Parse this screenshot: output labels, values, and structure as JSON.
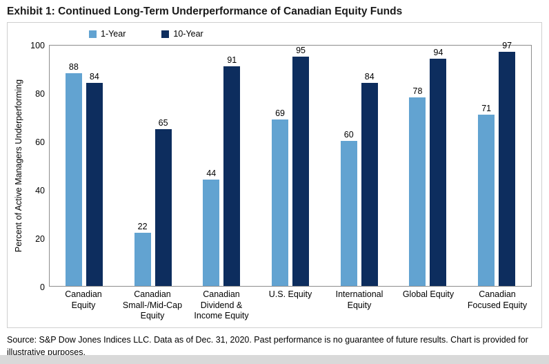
{
  "title": "Exhibit 1: Continued Long-Term Underperformance of Canadian Equity Funds",
  "source": "Source: S&P Dow Jones Indices LLC. Data as of Dec. 31, 2020. Past performance is no guarantee of future results. Chart is provided for illustrative purposes.",
  "chart_data": {
    "type": "bar",
    "title": "Exhibit 1: Continued Long-Term Underperformance of Canadian Equity Funds",
    "xlabel": "",
    "ylabel": "Percent of Active Managers Underperforming",
    "ylim": [
      0,
      100
    ],
    "yticks": [
      0,
      20,
      40,
      60,
      80,
      100
    ],
    "grid": false,
    "legend_position": "top",
    "categories": [
      "Canadian Equity",
      "Canadian Small-/Mid-Cap Equity",
      "Canadian Dividend & Income Equity",
      "U.S. Equity",
      "International Equity",
      "Global Equity",
      "Canadian Focused Equity"
    ],
    "series": [
      {
        "name": "1-Year",
        "color": "#62A3D1",
        "values": [
          88,
          22,
          44,
          69,
          60,
          78,
          71
        ]
      },
      {
        "name": "10-Year",
        "color": "#0D2D5E",
        "values": [
          84,
          65,
          91,
          95,
          84,
          94,
          97
        ]
      }
    ]
  }
}
